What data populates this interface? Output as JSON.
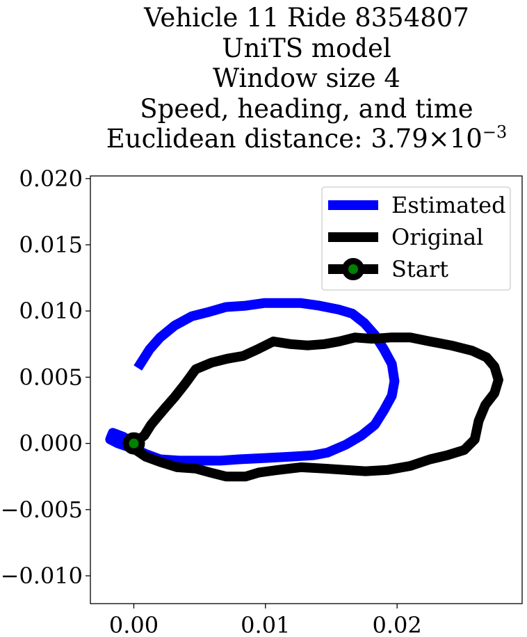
{
  "chart_data": {
    "type": "line",
    "title_lines": [
      "Vehicle 11 Ride 8354807",
      "UniTS model",
      "Window size 4",
      "Speed, heading, and time"
    ],
    "title_distance_prefix": "Euclidean distance: 3.79×10",
    "title_distance_exponent": "−3",
    "xlim": [
      -0.0033,
      0.0295
    ],
    "ylim": [
      -0.0121,
      0.0202
    ],
    "x_ticks": [
      {
        "value": 0.0,
        "label": "0.00"
      },
      {
        "value": 0.01,
        "label": "0.01"
      },
      {
        "value": 0.02,
        "label": "0.02"
      }
    ],
    "y_ticks": [
      {
        "value": 0.02,
        "label": "0.020"
      },
      {
        "value": 0.015,
        "label": "0.015"
      },
      {
        "value": 0.01,
        "label": "0.010"
      },
      {
        "value": 0.005,
        "label": "0.005"
      },
      {
        "value": 0.0,
        "label": "0.000"
      },
      {
        "value": -0.005,
        "label": "−0.005"
      },
      {
        "value": -0.01,
        "label": "−0.010"
      }
    ],
    "legend_position": "top-right",
    "series": [
      {
        "name": "Estimated",
        "color": "#0000ff",
        "points": [
          [
            0.0003,
            0.0057
          ],
          [
            0.0012,
            0.0071
          ],
          [
            0.002,
            0.008
          ],
          [
            0.0031,
            0.0089
          ],
          [
            0.0044,
            0.0096
          ],
          [
            0.0056,
            0.0099
          ],
          [
            0.007,
            0.0103
          ],
          [
            0.0085,
            0.0104
          ],
          [
            0.0099,
            0.0106
          ],
          [
            0.0113,
            0.0106
          ],
          [
            0.0127,
            0.0106
          ],
          [
            0.0141,
            0.0104
          ],
          [
            0.0156,
            0.0101
          ],
          [
            0.0166,
            0.0098
          ],
          [
            0.0175,
            0.0091
          ],
          [
            0.0183,
            0.0082
          ],
          [
            0.019,
            0.0071
          ],
          [
            0.0196,
            0.006
          ],
          [
            0.0198,
            0.0047
          ],
          [
            0.0196,
            0.0036
          ],
          [
            0.019,
            0.0025
          ],
          [
            0.0183,
            0.0014
          ],
          [
            0.0173,
            0.0006
          ],
          [
            0.0161,
            -0.0001
          ],
          [
            0.0147,
            -0.0007
          ],
          [
            0.0136,
            -0.0009
          ],
          [
            0.0119,
            -0.001
          ],
          [
            0.01,
            -0.0011
          ],
          [
            0.008,
            -0.0012
          ],
          [
            0.0066,
            -0.0013
          ],
          [
            0.0052,
            -0.0013
          ],
          [
            0.0035,
            -0.0013
          ],
          [
            0.002,
            -0.0012
          ],
          [
            0.0009,
            -0.0008
          ],
          [
            0.0,
            -0.0004
          ],
          [
            -0.0012,
            0.0
          ],
          [
            -0.0018,
            0.0003
          ],
          [
            -0.0016,
            0.0008
          ],
          [
            -0.0008,
            0.0005
          ],
          [
            0.0,
            0.0
          ]
        ]
      },
      {
        "name": "Original",
        "color": "#000000",
        "points": [
          [
            0.0,
            0.0
          ],
          [
            0.0008,
            0.0006
          ],
          [
            0.0013,
            0.0014
          ],
          [
            0.0018,
            0.002
          ],
          [
            0.0024,
            0.0027
          ],
          [
            0.0031,
            0.0035
          ],
          [
            0.0039,
            0.0045
          ],
          [
            0.0047,
            0.0056
          ],
          [
            0.0059,
            0.0061
          ],
          [
            0.0071,
            0.0064
          ],
          [
            0.0083,
            0.0066
          ],
          [
            0.0094,
            0.0071
          ],
          [
            0.0106,
            0.0077
          ],
          [
            0.0119,
            0.0075
          ],
          [
            0.0132,
            0.0074
          ],
          [
            0.0145,
            0.0075
          ],
          [
            0.0156,
            0.0077
          ],
          [
            0.0168,
            0.008
          ],
          [
            0.0181,
            0.0079
          ],
          [
            0.0195,
            0.008
          ],
          [
            0.021,
            0.008
          ],
          [
            0.0225,
            0.0077
          ],
          [
            0.0241,
            0.0074
          ],
          [
            0.0257,
            0.007
          ],
          [
            0.0268,
            0.0065
          ],
          [
            0.0274,
            0.0058
          ],
          [
            0.0277,
            0.0048
          ],
          [
            0.0274,
            0.0038
          ],
          [
            0.0267,
            0.0029
          ],
          [
            0.0262,
            0.0017
          ],
          [
            0.0259,
            0.0003
          ],
          [
            0.0251,
            -0.0005
          ],
          [
            0.0238,
            -0.0009
          ],
          [
            0.0225,
            -0.0012
          ],
          [
            0.021,
            -0.0017
          ],
          [
            0.0193,
            -0.002
          ],
          [
            0.0176,
            -0.0021
          ],
          [
            0.016,
            -0.002
          ],
          [
            0.0145,
            -0.0019
          ],
          [
            0.0127,
            -0.0018
          ],
          [
            0.011,
            -0.002
          ],
          [
            0.0095,
            -0.0022
          ],
          [
            0.0085,
            -0.0025
          ],
          [
            0.007,
            -0.0025
          ],
          [
            0.0058,
            -0.0022
          ],
          [
            0.0047,
            -0.0019
          ],
          [
            0.0033,
            -0.0018
          ],
          [
            0.002,
            -0.0014
          ],
          [
            0.0009,
            -0.001
          ],
          [
            0.0,
            -0.0004
          ],
          [
            0.0,
            0.0
          ]
        ]
      }
    ],
    "legend_entries": [
      "Estimated",
      "Original",
      "Start"
    ],
    "start_point": {
      "x": 0.0,
      "y": 0.0,
      "face_color": "#008000",
      "edge_color": "#000000"
    }
  }
}
